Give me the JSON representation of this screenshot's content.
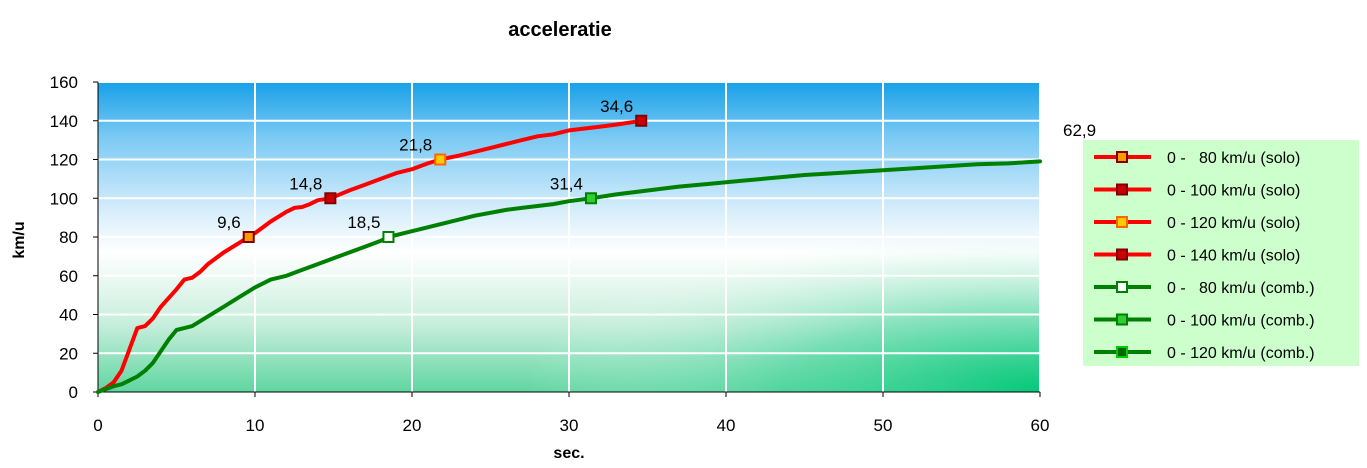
{
  "chart_data": {
    "type": "line",
    "title": "acceleratie",
    "xlabel": "sec.",
    "ylabel": "km/u",
    "xlim": [
      0,
      60
    ],
    "ylim": [
      0,
      160
    ],
    "x_ticks": [
      0,
      10,
      20,
      30,
      40,
      50,
      60
    ],
    "y_ticks": [
      0,
      20,
      40,
      60,
      80,
      100,
      120,
      140,
      160
    ],
    "grid": true,
    "legend_position": "right",
    "background": "gradient blue (top) to white to green (bottom-right)",
    "curves": [
      {
        "group": "solo",
        "color": "#ff0000",
        "points": [
          [
            0,
            0
          ],
          [
            0.5,
            2
          ],
          [
            1,
            5
          ],
          [
            1.5,
            11
          ],
          [
            2,
            22
          ],
          [
            2.5,
            33
          ],
          [
            3,
            34
          ],
          [
            3.5,
            38
          ],
          [
            4,
            44
          ],
          [
            5,
            53
          ],
          [
            5.5,
            58
          ],
          [
            6,
            59
          ],
          [
            6.5,
            62
          ],
          [
            7,
            66
          ],
          [
            8,
            72
          ],
          [
            9,
            77
          ],
          [
            9.6,
            80
          ],
          [
            10,
            82
          ],
          [
            11,
            88
          ],
          [
            12,
            93
          ],
          [
            12.5,
            95
          ],
          [
            13,
            95.5
          ],
          [
            13.5,
            97
          ],
          [
            14,
            99
          ],
          [
            14.8,
            100
          ],
          [
            16,
            104
          ],
          [
            17,
            107
          ],
          [
            18,
            110
          ],
          [
            19,
            113
          ],
          [
            20,
            115
          ],
          [
            21,
            118
          ],
          [
            21.8,
            120
          ],
          [
            23,
            122
          ],
          [
            24,
            124
          ],
          [
            25,
            126
          ],
          [
            26,
            128
          ],
          [
            27,
            130
          ],
          [
            28,
            132
          ],
          [
            29,
            133
          ],
          [
            30,
            135
          ],
          [
            31,
            136
          ],
          [
            32,
            137
          ],
          [
            33,
            138
          ],
          [
            34.6,
            140
          ]
        ]
      },
      {
        "group": "comb.",
        "color": "#008000",
        "points": [
          [
            0,
            0
          ],
          [
            0.5,
            1.5
          ],
          [
            1,
            3
          ],
          [
            1.5,
            4
          ],
          [
            2,
            6
          ],
          [
            2.5,
            8
          ],
          [
            3,
            11
          ],
          [
            3.5,
            15
          ],
          [
            4,
            21
          ],
          [
            4.5,
            27
          ],
          [
            5,
            32
          ],
          [
            5.5,
            33
          ],
          [
            6,
            34
          ],
          [
            7,
            39
          ],
          [
            8,
            44
          ],
          [
            9,
            49
          ],
          [
            10,
            54
          ],
          [
            11,
            58
          ],
          [
            12,
            60
          ],
          [
            13,
            63
          ],
          [
            14,
            66
          ],
          [
            15,
            69
          ],
          [
            16,
            72
          ],
          [
            17,
            75
          ],
          [
            18,
            78
          ],
          [
            18.5,
            80
          ],
          [
            20,
            83
          ],
          [
            22,
            87
          ],
          [
            24,
            91
          ],
          [
            26,
            94
          ],
          [
            27,
            95
          ],
          [
            28,
            96
          ],
          [
            29,
            97
          ],
          [
            30,
            98.5
          ],
          [
            31.4,
            100
          ],
          [
            33,
            102
          ],
          [
            35,
            104
          ],
          [
            37,
            106
          ],
          [
            39,
            107.5
          ],
          [
            41,
            109
          ],
          [
            43,
            110.5
          ],
          [
            45,
            112
          ],
          [
            47,
            113
          ],
          [
            50,
            114.5
          ],
          [
            53,
            116
          ],
          [
            56,
            117.5
          ],
          [
            58,
            118
          ],
          [
            60,
            119
          ]
        ]
      }
    ],
    "series": [
      {
        "name": "0 -   80 km/u (solo)",
        "x": 9.6,
        "y": 80,
        "label": "9,6",
        "line_color": "#ff0000",
        "marker_fill": "#ff9900",
        "marker_border": "#800000"
      },
      {
        "name": "0 - 100 km/u (solo)",
        "x": 14.8,
        "y": 100,
        "label": "14,8",
        "line_color": "#ff0000",
        "marker_fill": "#cc0000",
        "marker_border": "#800000"
      },
      {
        "name": "0 - 120 km/u (solo)",
        "x": 21.8,
        "y": 120,
        "label": "21,8",
        "line_color": "#ff0000",
        "marker_fill": "#ffcc00",
        "marker_border": "#ff6600"
      },
      {
        "name": "0 - 140 km/u (solo)",
        "x": 34.6,
        "y": 140,
        "label": "34,6",
        "line_color": "#ff0000",
        "marker_fill": "#cc0000",
        "marker_border": "#800000"
      },
      {
        "name": "0 -   80 km/u (comb.)",
        "x": 18.5,
        "y": 80,
        "label": "18,5",
        "line_color": "#008000",
        "marker_fill": "#ffffff",
        "marker_border": "#008000"
      },
      {
        "name": "0 - 100 km/u (comb.)",
        "x": 31.4,
        "y": 100,
        "label": "31,4",
        "line_color": "#008000",
        "marker_fill": "#33cc33",
        "marker_border": "#008000"
      },
      {
        "name": "0 - 120 km/u (comb.)",
        "x": 62.9,
        "y": 120,
        "label": "62,9",
        "line_color": "#008000",
        "marker_fill": "#006600",
        "marker_border": "#00cc00"
      }
    ]
  }
}
